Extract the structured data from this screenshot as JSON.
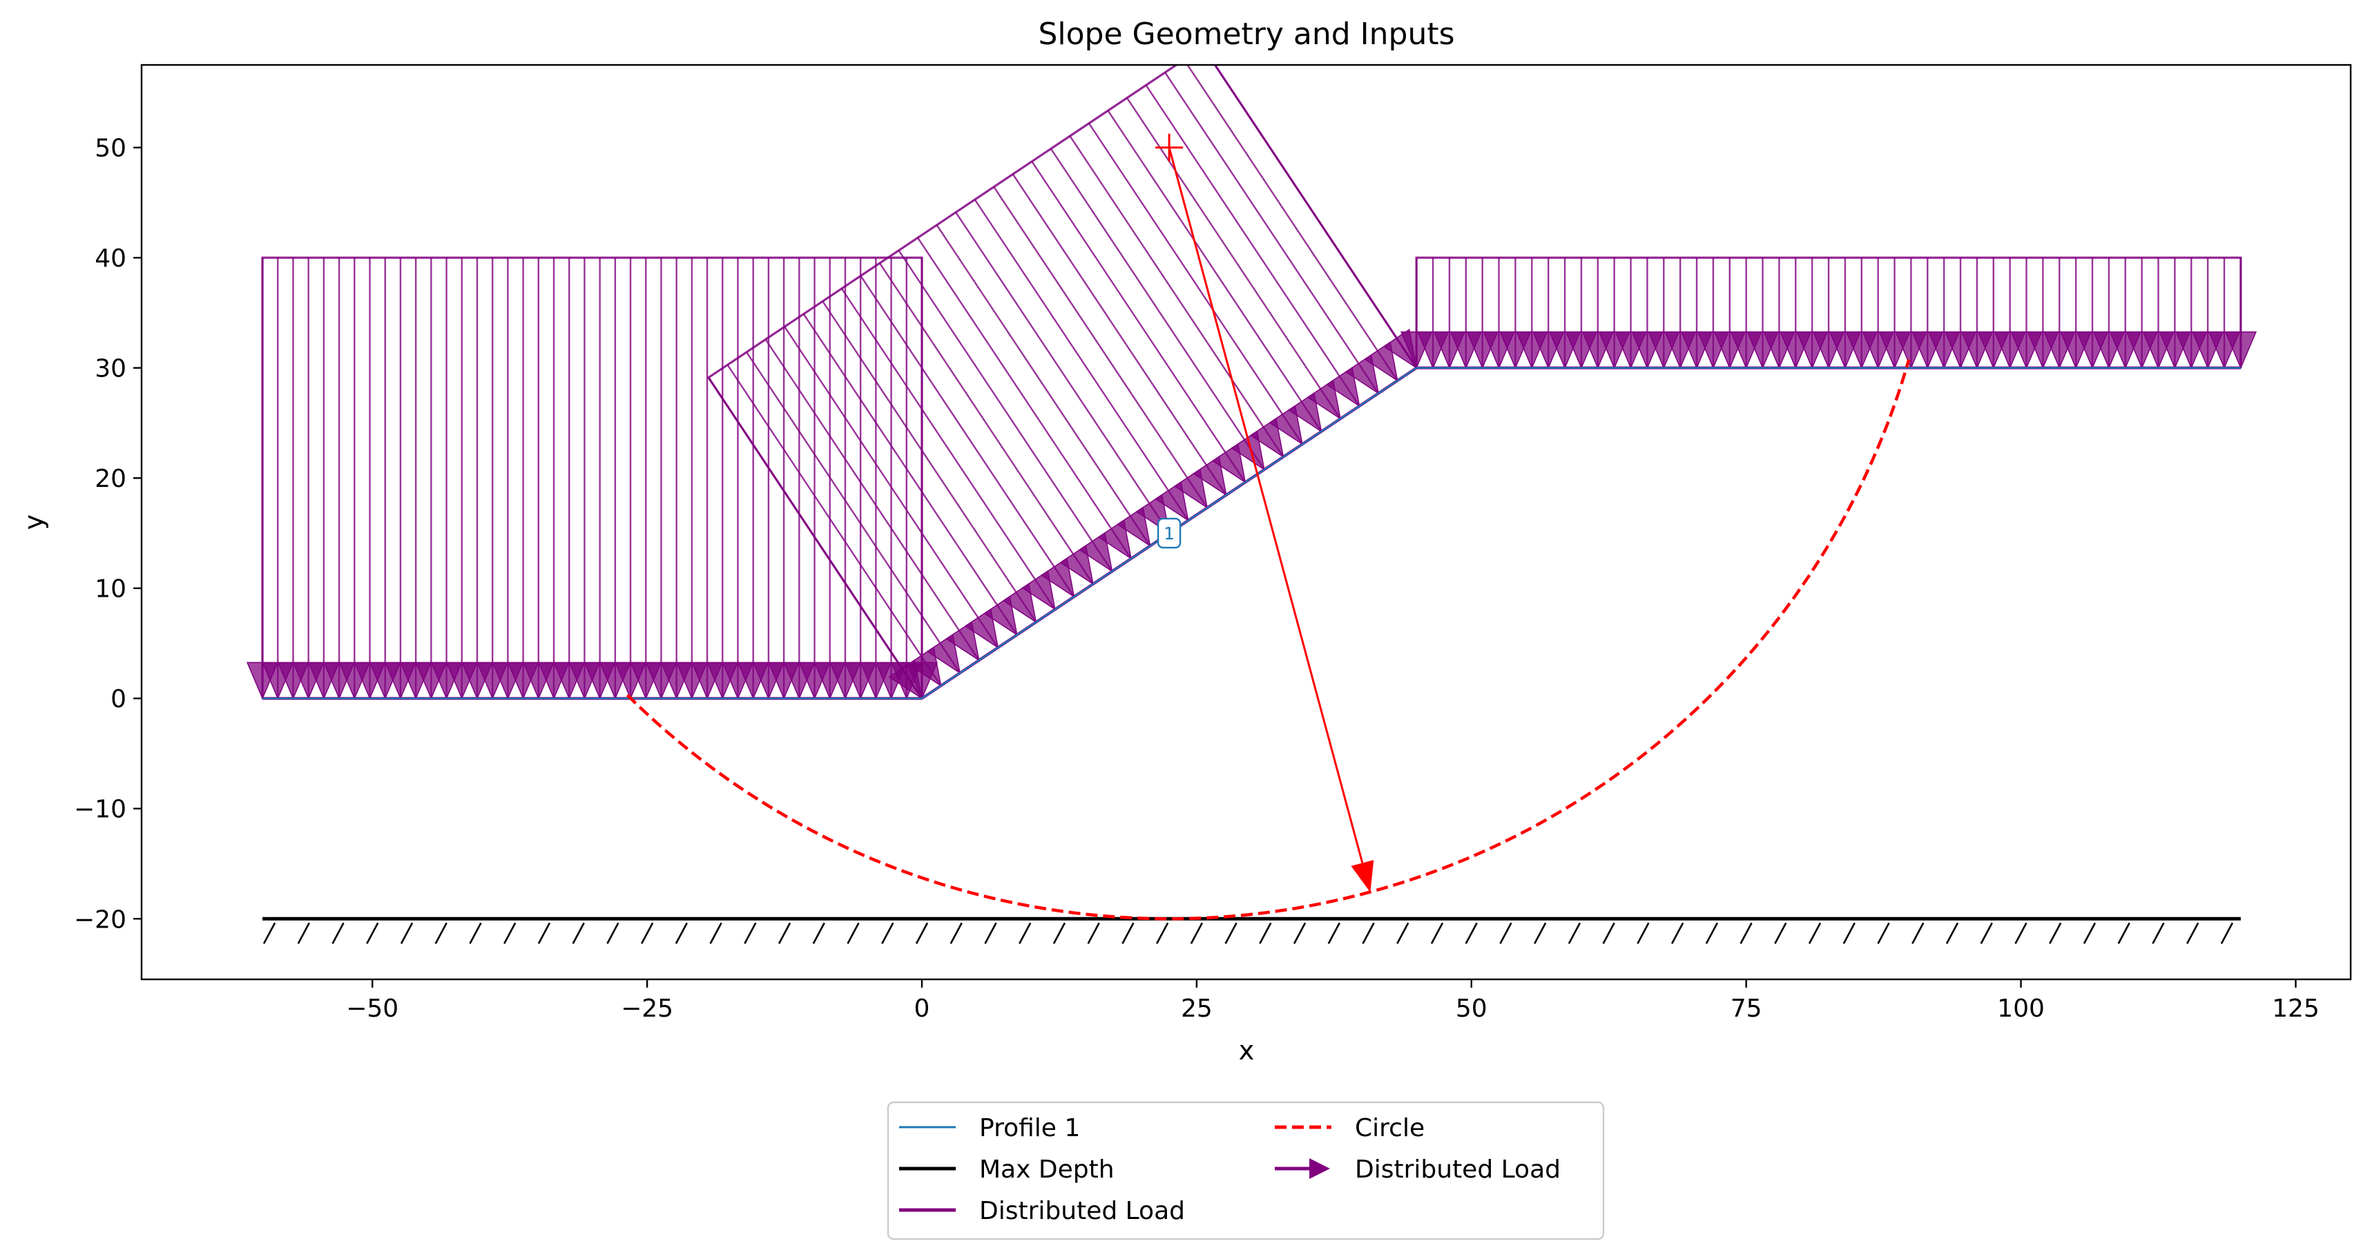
{
  "chart_data": {
    "type": "line",
    "title": "Slope Geometry and Inputs",
    "xlabel": "x",
    "ylabel": "y",
    "xlim": [
      -71,
      130
    ],
    "ylim": [
      -25.5,
      57.5
    ],
    "xticks": [
      -50,
      -25,
      0,
      25,
      50,
      75,
      100,
      125
    ],
    "yticks": [
      -20,
      -10,
      0,
      10,
      20,
      30,
      40,
      50
    ],
    "xtick_labels": [
      "−50",
      "−25",
      "0",
      "25",
      "50",
      "75",
      "100",
      "125"
    ],
    "ytick_labels": [
      "−20",
      "−10",
      "0",
      "10",
      "20",
      "30",
      "40",
      "50"
    ],
    "grid": false,
    "legend_position": "below-center",
    "profile": {
      "name": "Profile 1",
      "color": "#1f77b4",
      "label": "1",
      "label_at": [
        22.5,
        15
      ],
      "points": [
        [
          -60,
          0
        ],
        [
          0,
          0
        ],
        [
          45,
          30
        ],
        [
          120,
          30
        ]
      ]
    },
    "max_depth": {
      "name": "Max Depth",
      "color": "#000000",
      "y": -20,
      "x_range": [
        -60,
        120
      ],
      "hatch_count": 58
    },
    "distributed_loads": {
      "name": "Distributed Load",
      "arrow_name": "Distributed Load",
      "color": "#800080",
      "segments": [
        {
          "from": [
            -60,
            0
          ],
          "to": [
            0,
            0
          ],
          "load": 40,
          "direction": "vertical",
          "arrow_count": 44
        },
        {
          "from": [
            0,
            0
          ],
          "to": [
            45,
            30
          ],
          "load": 35,
          "direction": "normal",
          "arrow_count": 27
        },
        {
          "from": [
            45,
            30
          ],
          "to": [
            120,
            30
          ],
          "load": 10,
          "direction": "vertical",
          "arrow_count": 51
        }
      ]
    },
    "circle": {
      "name": "Circle",
      "color": "#ff0000",
      "center": [
        22.5,
        50
      ],
      "radius": 70,
      "arc_start_x": -26.8,
      "arc_end_x": 89.8,
      "radius_arrow_to": [
        40.8,
        -17.6
      ]
    },
    "legend_entries": [
      {
        "label": "Profile 1",
        "style": "line",
        "color": "#1f77b4",
        "dash": ""
      },
      {
        "label": "Max Depth",
        "style": "line",
        "color": "#000000",
        "dash": ""
      },
      {
        "label": "Distributed Load",
        "style": "line",
        "color": "#800080",
        "dash": ""
      },
      {
        "label": "Circle",
        "style": "line",
        "color": "#ff0000",
        "dash": "dashed"
      },
      {
        "label": "Distributed Load",
        "style": "arrow",
        "color": "#800080",
        "dash": ""
      }
    ]
  }
}
